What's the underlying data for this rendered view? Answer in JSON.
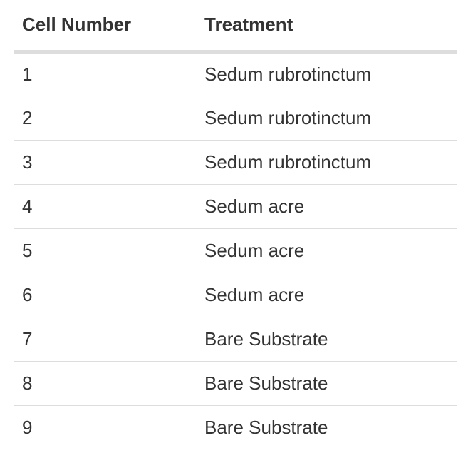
{
  "table": {
    "headers": [
      "Cell Number",
      "Treatment"
    ],
    "rows": [
      [
        "1",
        "Sedum rubrotinctum"
      ],
      [
        "2",
        "Sedum rubrotinctum"
      ],
      [
        "3",
        "Sedum rubrotinctum"
      ],
      [
        "4",
        "Sedum acre"
      ],
      [
        "5",
        "Sedum acre"
      ],
      [
        "6",
        "Sedum acre"
      ],
      [
        "7",
        "Bare Substrate"
      ],
      [
        "8",
        "Bare Substrate"
      ],
      [
        "9",
        "Bare Substrate"
      ]
    ]
  },
  "colors": {
    "text": "#333333",
    "border": "#dddddd",
    "background": "#ffffff"
  }
}
